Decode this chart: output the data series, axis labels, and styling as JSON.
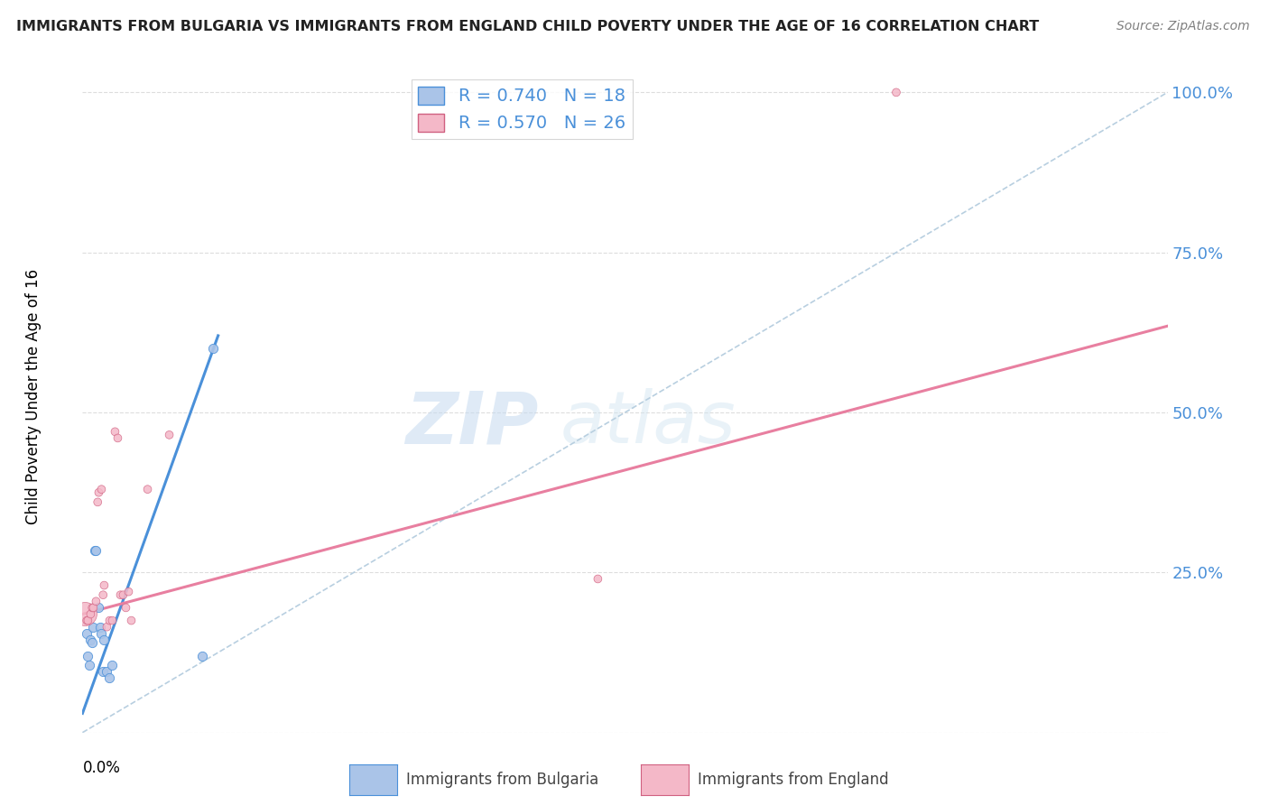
{
  "title": "IMMIGRANTS FROM BULGARIA VS IMMIGRANTS FROM ENGLAND CHILD POVERTY UNDER THE AGE OF 16 CORRELATION CHART",
  "source": "Source: ZipAtlas.com",
  "ylabel": "Child Poverty Under the Age of 16",
  "y_ticks": [
    0.0,
    0.25,
    0.5,
    0.75,
    1.0
  ],
  "y_tick_labels": [
    "",
    "25.0%",
    "50.0%",
    "75.0%",
    "100.0%"
  ],
  "x_range": [
    0.0,
    0.2
  ],
  "y_range": [
    0.0,
    1.05
  ],
  "watermark_zip": "ZIP",
  "watermark_atlas": "atlas",
  "legend_1_label": "R = 0.740   N = 18",
  "legend_2_label": "R = 0.570   N = 26",
  "legend_color_1": "#aac4e8",
  "legend_color_2": "#f4b8c8",
  "scatter_bulgaria_x": [
    0.0008,
    0.001,
    0.0012,
    0.0015,
    0.0018,
    0.002,
    0.0022,
    0.0025,
    0.003,
    0.0032,
    0.0035,
    0.0038,
    0.004,
    0.0045,
    0.005,
    0.0055,
    0.022,
    0.024
  ],
  "scatter_bulgaria_y": [
    0.155,
    0.12,
    0.105,
    0.145,
    0.14,
    0.165,
    0.285,
    0.285,
    0.195,
    0.165,
    0.155,
    0.095,
    0.145,
    0.095,
    0.085,
    0.105,
    0.12,
    0.6
  ],
  "scatter_england_x": [
    0.0005,
    0.0008,
    0.001,
    0.0015,
    0.0018,
    0.002,
    0.0025,
    0.0028,
    0.003,
    0.0035,
    0.0038,
    0.004,
    0.0045,
    0.005,
    0.0055,
    0.006,
    0.0065,
    0.007,
    0.0075,
    0.008,
    0.0085,
    0.009,
    0.012,
    0.016,
    0.095,
    0.15
  ],
  "scatter_england_y": [
    0.185,
    0.175,
    0.175,
    0.185,
    0.195,
    0.195,
    0.205,
    0.36,
    0.375,
    0.38,
    0.215,
    0.23,
    0.165,
    0.175,
    0.175,
    0.47,
    0.46,
    0.215,
    0.215,
    0.195,
    0.22,
    0.175,
    0.38,
    0.465,
    0.24,
    1.0
  ],
  "scatter_england_large_idx": 0,
  "scatter_england_large_size": 350,
  "scatter_bulgaria_size": 55,
  "scatter_england_size": 40,
  "trendline_bulgaria_color": "#4a90d9",
  "trendline_england_color": "#e87fa0",
  "trendline_diagonal_color": "#b8cfe0",
  "trendline_bulgaria_x0": 0.0,
  "trendline_bulgaria_y0": 0.03,
  "trendline_bulgaria_x1": 0.025,
  "trendline_bulgaria_y1": 0.62,
  "trendline_england_x0": 0.0,
  "trendline_england_y0": 0.185,
  "trendline_england_x1": 0.2,
  "trendline_england_y1": 0.635,
  "bg_color": "#ffffff",
  "grid_color": "#dddddd",
  "title_color": "#222222",
  "right_axis_color": "#4a90d9",
  "bottom_legend_bulgaria": "Immigrants from Bulgaria",
  "bottom_legend_england": "Immigrants from England"
}
